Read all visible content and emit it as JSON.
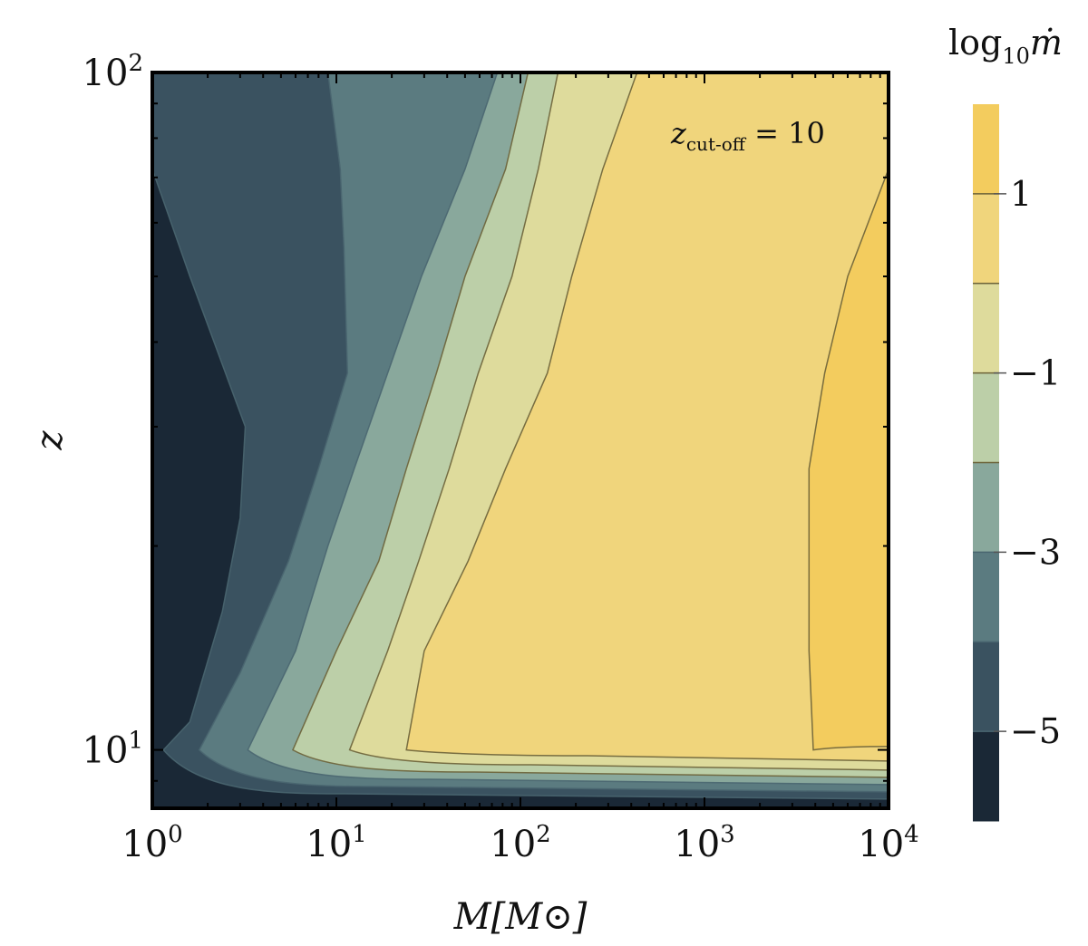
{
  "chart_data": {
    "type": "contour",
    "xaxis": {
      "label": "M[M⊙]",
      "scale": "log",
      "range": [
        1,
        10000
      ],
      "ticks": [
        {
          "value": 1,
          "base": "10",
          "exp": "0"
        },
        {
          "value": 10,
          "base": "10",
          "exp": "1"
        },
        {
          "value": 100,
          "base": "10",
          "exp": "2"
        },
        {
          "value": 1000,
          "base": "10",
          "exp": "3"
        },
        {
          "value": 10000,
          "base": "10",
          "exp": "4"
        }
      ]
    },
    "yaxis": {
      "label": "z",
      "scale": "log",
      "range": [
        8.2,
        100
      ],
      "ticks": [
        {
          "value": 10,
          "base": "10",
          "exp": "1"
        },
        {
          "value": 100,
          "base": "10",
          "exp": "2"
        }
      ]
    },
    "annotation": {
      "symbol": "z",
      "subscript": "cut-off",
      "rest": " = 10"
    },
    "colorbar": {
      "title_prefix": "log",
      "title_sub": "10",
      "title_var": "ṁ",
      "levels": [
        -6,
        -5,
        -4,
        -3,
        -2,
        -1,
        0,
        1,
        2
      ],
      "colors": [
        "#1a2836",
        "#3a5260",
        "#5b7b80",
        "#89a89c",
        "#bccfa8",
        "#dedb9c",
        "#f0d57c",
        "#f3cc5e"
      ],
      "tick_labels": [
        {
          "value": 1,
          "label": "1"
        },
        {
          "value": -1,
          "label": "−1"
        },
        {
          "value": -3,
          "label": "−3"
        },
        {
          "value": -5,
          "label": "−5"
        }
      ]
    },
    "contour_boundaries": [
      {
        "level": -5,
        "z_above_cutoff": [
          [
            1.0,
            72
          ],
          [
            1.6,
            50
          ],
          [
            3.2,
            30
          ],
          [
            3.0,
            22
          ],
          [
            2.4,
            16
          ],
          [
            1.6,
            11
          ],
          [
            1.15,
            10
          ]
        ]
      },
      {
        "level": -4,
        "z_above_cutoff": [
          [
            9.0,
            100
          ],
          [
            10.5,
            72
          ],
          [
            11.0,
            55
          ],
          [
            11.5,
            36
          ],
          [
            8.0,
            26
          ],
          [
            5.5,
            19
          ],
          [
            3.0,
            13
          ],
          [
            1.8,
            10
          ]
        ]
      },
      {
        "level": -3,
        "z_above_cutoff": [
          [
            75,
            100
          ],
          [
            50,
            72
          ],
          [
            29,
            50
          ],
          [
            19,
            36
          ],
          [
            12.5,
            26
          ],
          [
            9,
            20
          ],
          [
            6,
            14
          ],
          [
            3.3,
            10
          ]
        ]
      },
      {
        "level": -2,
        "z_above_cutoff": [
          [
            110,
            100
          ],
          [
            83,
            72
          ],
          [
            50,
            50
          ],
          [
            35,
            36
          ],
          [
            24,
            26
          ],
          [
            17,
            19
          ],
          [
            10,
            14
          ],
          [
            5.8,
            10
          ]
        ]
      },
      {
        "level": -1,
        "z_above_cutoff": [
          [
            160,
            100
          ],
          [
            125,
            72
          ],
          [
            90,
            50
          ],
          [
            59,
            36
          ],
          [
            41,
            26
          ],
          [
            28,
            19
          ],
          [
            19,
            14
          ],
          [
            11.8,
            10
          ]
        ]
      },
      {
        "level": 0,
        "z_above_cutoff": [
          [
            430,
            100
          ],
          [
            280,
            72
          ],
          [
            190,
            50
          ],
          [
            140,
            36
          ],
          [
            83,
            26
          ],
          [
            52,
            19
          ],
          [
            30,
            14
          ],
          [
            24,
            10
          ]
        ]
      },
      {
        "level": 1,
        "z_above_cutoff": [
          [
            10000,
            72
          ],
          [
            6000,
            50
          ],
          [
            4500,
            36
          ],
          [
            3700,
            26
          ],
          [
            3700,
            19
          ],
          [
            3700,
            14
          ],
          [
            3900,
            10
          ]
        ]
      }
    ],
    "cutoff_redshift": 10
  }
}
